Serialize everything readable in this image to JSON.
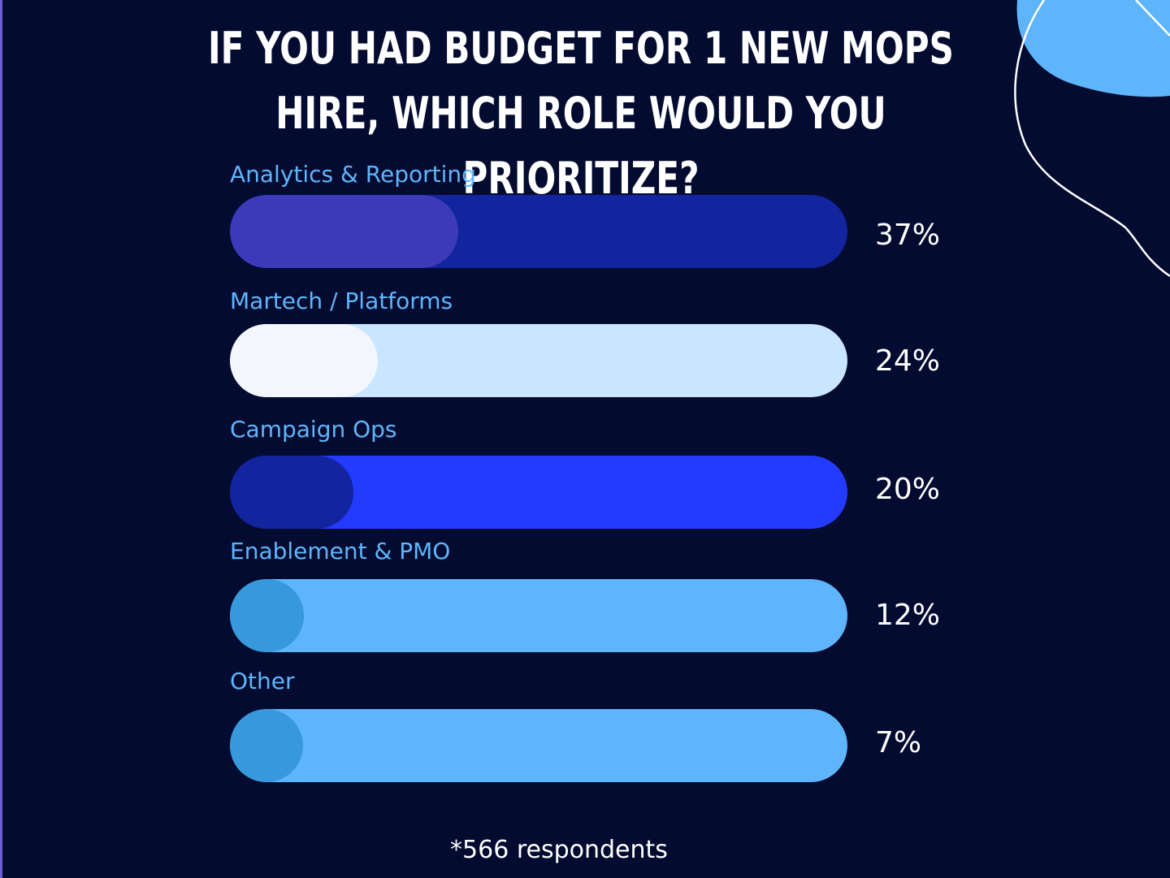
{
  "chart_data": {
    "type": "bar",
    "orientation": "horizontal",
    "title": "IF YOU HAD BUDGET FOR 1 NEW MOPS HIRE, WHICH ROLE WOULD YOU PRIORITIZE?",
    "unit": "%",
    "xlim": [
      0,
      100
    ],
    "categories": [
      "Analytics & Reporting",
      "Martech / Platforms",
      "Campaign Ops",
      "Enablement & PMO",
      "Other"
    ],
    "values": [
      37,
      24,
      20,
      12,
      7
    ],
    "value_labels": [
      "37%",
      "24%",
      "20%",
      "12%",
      "7%"
    ],
    "colors": {
      "track": [
        "#12249e",
        "#c9e5ff",
        "#233aff",
        "#5eb5fb",
        "#5eb5fb"
      ],
      "fill": [
        "#3c3ab8",
        "#f3f6fc",
        "#12249e",
        "#3799db",
        "#3799db"
      ]
    },
    "grid": false,
    "legend": "none"
  },
  "footnote": "*566 respondents",
  "colors": {
    "background": "#040b30",
    "label": "#5fb5fb",
    "text": "#ffffff",
    "accent_blob": "#5eb5fb"
  }
}
